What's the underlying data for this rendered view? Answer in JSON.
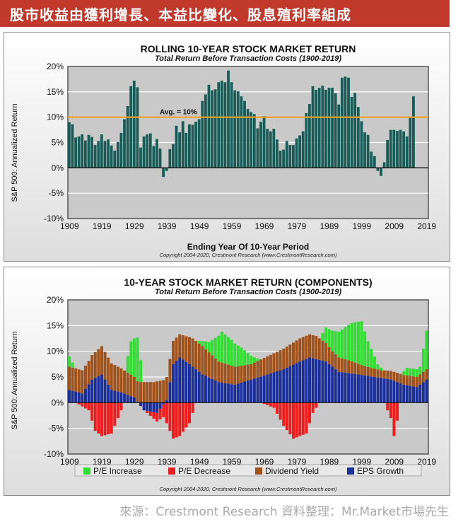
{
  "banner": {
    "title": "股市收益由獲利增長、本益比變化、股息殖利率組成"
  },
  "footer": {
    "text": "來源：Crestmont Research  資料整理：Mr.Market市場先生"
  },
  "chart_data": [
    {
      "type": "bar",
      "title": "ROLLING 10-YEAR STOCK MARKET RETURN",
      "subtitle": "Total Return Before Transaction Costs (1900-2019)",
      "xlabel": "Ending Year Of 10-Year Period",
      "ylabel": "S&P 500: Annualized Return",
      "copyright": "Copyright 2004-2020, Crestmont Research (www.CrestmontResearch.com)",
      "ylim": [
        -10,
        20
      ],
      "yticks": [
        "20%",
        "15%",
        "10%",
        "5%",
        "0%",
        "-5%",
        "-10%"
      ],
      "xticks": [
        "1909",
        "1919",
        "1929",
        "1939",
        "1949",
        "1959",
        "1969",
        "1979",
        "1989",
        "1999",
        "2009",
        "2019"
      ],
      "x_start": 1909,
      "x_end": 2019,
      "average": {
        "value": 10,
        "label": "Avg. = 10%"
      },
      "values": [
        9,
        8.6,
        6,
        6.2,
        6.6,
        5.4,
        6.5,
        6.1,
        4.5,
        5.3,
        6.6,
        5.3,
        5.6,
        4.4,
        3.4,
        5.1,
        6.9,
        9.6,
        12.2,
        16.1,
        17.2,
        15.9,
        4,
        6.2,
        6.6,
        6.8,
        4.3,
        5.7,
        3.8,
        -1.8,
        -0.6,
        3.7,
        4.7,
        8.3,
        7,
        9.2,
        6.9,
        8.6,
        8.5,
        9.1,
        9.6,
        13.2,
        14.5,
        16.4,
        15.3,
        15.5,
        16.9,
        17.2,
        16.9,
        19.2,
        16.9,
        15.3,
        15.1,
        14.1,
        13.2,
        11.6,
        11,
        10.6,
        7.8,
        9.1,
        10.2,
        7.7,
        7.2,
        7.7,
        5.6,
        3.4,
        3.6,
        5.3,
        4.5,
        4.5,
        5.8,
        6.4,
        7.2,
        10.8,
        12.6,
        16.1,
        15.4,
        15.8,
        16.2,
        15.4,
        15.8,
        15.8,
        14.7,
        12.5,
        17.8,
        18,
        17.8,
        14,
        14.8,
        12,
        9.2,
        7,
        6.5,
        3.2,
        2.3,
        -0.6,
        -1.6,
        1.1,
        5.5,
        7.5,
        7.5,
        7.3,
        7.5,
        7.2,
        6.2,
        9.9,
        14.1
      ]
    },
    {
      "type": "bar",
      "stacked": true,
      "title": "10-YEAR STOCK MARKET RETURN (COMPONENTS)",
      "subtitle": "Total Return Before Transaction Costs (1900-2019)",
      "ylabel": "S&P 500: Annualized Return",
      "copyright": "Copyright 2004-2020, Crestmont Research (www.CrestmontResearch.com)",
      "ylim": [
        -10,
        20
      ],
      "yticks": [
        "20%",
        "15%",
        "10%",
        "5%",
        "0%",
        "-5%",
        "-10%"
      ],
      "xticks": [
        "1909",
        "1919",
        "1929",
        "1939",
        "1949",
        "1959",
        "1969",
        "1979",
        "1989",
        "1999",
        "2009",
        "2019"
      ],
      "x_start": 1909,
      "x_end": 2019,
      "legend_position": "bottom",
      "series": [
        {
          "name": "P/E Increase",
          "color": "#33dd33"
        },
        {
          "name": "P/E Decrease",
          "color": "#ee1c1c"
        },
        {
          "name": "Dividend Yield",
          "color": "#a0521a"
        },
        {
          "name": "EPS Growth",
          "color": "#1a2f9a"
        }
      ],
      "eps_growth": [
        {
          "year": 1909,
          "value": 2.5
        },
        {
          "year": 1913,
          "value": 1.8
        },
        {
          "year": 1916,
          "value": 4.5
        },
        {
          "year": 1919,
          "value": 5.5
        },
        {
          "year": 1922,
          "value": 2.5
        },
        {
          "year": 1925,
          "value": 2.0
        },
        {
          "year": 1929,
          "value": 1.0
        },
        {
          "year": 1932,
          "value": -1.5
        },
        {
          "year": 1936,
          "value": -2.0
        },
        {
          "year": 1939,
          "value": 0.5
        },
        {
          "year": 1941,
          "value": 7.5
        },
        {
          "year": 1943,
          "value": 8.8
        },
        {
          "year": 1946,
          "value": 7.5
        },
        {
          "year": 1950,
          "value": 5.5
        },
        {
          "year": 1955,
          "value": 4.0
        },
        {
          "year": 1960,
          "value": 3.5
        },
        {
          "year": 1965,
          "value": 4.5
        },
        {
          "year": 1970,
          "value": 5.5
        },
        {
          "year": 1975,
          "value": 6.5
        },
        {
          "year": 1980,
          "value": 8.0
        },
        {
          "year": 1983,
          "value": 8.8
        },
        {
          "year": 1988,
          "value": 8.0
        },
        {
          "year": 1992,
          "value": 6.0
        },
        {
          "year": 1998,
          "value": 5.5
        },
        {
          "year": 2003,
          "value": 5.0
        },
        {
          "year": 2008,
          "value": 4.5
        },
        {
          "year": 2012,
          "value": 3.5
        },
        {
          "year": 2016,
          "value": 3.0
        },
        {
          "year": 2019,
          "value": 4.5
        }
      ],
      "dividend_yield": [
        {
          "year": 1909,
          "value": 4.5
        },
        {
          "year": 1915,
          "value": 4.5
        },
        {
          "year": 1919,
          "value": 5.5
        },
        {
          "year": 1923,
          "value": 5.0
        },
        {
          "year": 1929,
          "value": 4.0
        },
        {
          "year": 1935,
          "value": 4.0
        },
        {
          "year": 1939,
          "value": 4.5
        },
        {
          "year": 1943,
          "value": 4.5
        },
        {
          "year": 1947,
          "value": 5.5
        },
        {
          "year": 1950,
          "value": 5.5
        },
        {
          "year": 1955,
          "value": 4.0
        },
        {
          "year": 1960,
          "value": 3.5
        },
        {
          "year": 1965,
          "value": 3.0
        },
        {
          "year": 1970,
          "value": 3.5
        },
        {
          "year": 1975,
          "value": 4.0
        },
        {
          "year": 1980,
          "value": 4.5
        },
        {
          "year": 1985,
          "value": 4.5
        },
        {
          "year": 1990,
          "value": 3.0
        },
        {
          "year": 1995,
          "value": 2.5
        },
        {
          "year": 2000,
          "value": 1.8
        },
        {
          "year": 2005,
          "value": 1.5
        },
        {
          "year": 2010,
          "value": 1.8
        },
        {
          "year": 2015,
          "value": 2.0
        },
        {
          "year": 2019,
          "value": 2.0
        }
      ],
      "pe_change": [
        {
          "year": 1909,
          "value": 2.0
        },
        {
          "year": 1911,
          "value": 0
        },
        {
          "year": 1915,
          "value": -1.5
        },
        {
          "year": 1917,
          "value": -5.5
        },
        {
          "year": 1919,
          "value": -6.5
        },
        {
          "year": 1922,
          "value": -6.0
        },
        {
          "year": 1924,
          "value": -3.0
        },
        {
          "year": 1926,
          "value": 0
        },
        {
          "year": 1928,
          "value": 6.5
        },
        {
          "year": 1930,
          "value": 8.5
        },
        {
          "year": 1932,
          "value": 0
        },
        {
          "year": 1938,
          "value": -2.5
        },
        {
          "year": 1941,
          "value": -7.0
        },
        {
          "year": 1943,
          "value": -6.5
        },
        {
          "year": 1946,
          "value": -4.0
        },
        {
          "year": 1948,
          "value": 0
        },
        {
          "year": 1952,
          "value": 2.0
        },
        {
          "year": 1956,
          "value": 6.0
        },
        {
          "year": 1959,
          "value": 5.0
        },
        {
          "year": 1962,
          "value": 3.5
        },
        {
          "year": 1966,
          "value": 1.0
        },
        {
          "year": 1968,
          "value": 0
        },
        {
          "year": 1972,
          "value": -1.0
        },
        {
          "year": 1975,
          "value": -4.5
        },
        {
          "year": 1978,
          "value": -7.0
        },
        {
          "year": 1982,
          "value": -6.0
        },
        {
          "year": 1984,
          "value": -2.0
        },
        {
          "year": 1986,
          "value": 0
        },
        {
          "year": 1988,
          "value": 3.0
        },
        {
          "year": 1992,
          "value": 5.0
        },
        {
          "year": 1996,
          "value": 7.5
        },
        {
          "year": 1999,
          "value": 8.5
        },
        {
          "year": 2001,
          "value": 5.0
        },
        {
          "year": 2004,
          "value": 1.0
        },
        {
          "year": 2006,
          "value": 0
        },
        {
          "year": 2008,
          "value": -3.0
        },
        {
          "year": 2009,
          "value": -6.5
        },
        {
          "year": 2010,
          "value": -3.5
        },
        {
          "year": 2011,
          "value": 0
        },
        {
          "year": 2013,
          "value": 1.5
        },
        {
          "year": 2017,
          "value": 1.5
        },
        {
          "year": 2019,
          "value": 7.5
        }
      ]
    }
  ]
}
